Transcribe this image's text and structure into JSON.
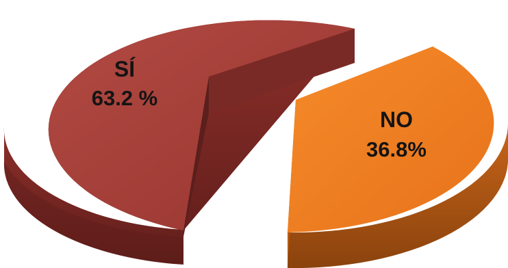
{
  "chart_data": {
    "type": "pie",
    "title": "",
    "slices": [
      {
        "label": "SÍ",
        "value": 63.2,
        "value_text": "63.2 %",
        "color": "#a8403a",
        "side_color": "#6e2420",
        "exploded": true
      },
      {
        "label": "NO",
        "value": 36.8,
        "value_text": "36.8%",
        "color": "#ee7d1f",
        "side_color": "#a95410",
        "exploded": true
      }
    ],
    "style": "3d-exploded"
  }
}
